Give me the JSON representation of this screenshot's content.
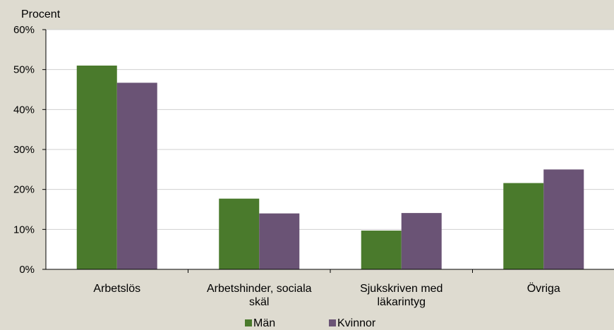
{
  "chart_data": {
    "type": "bar",
    "ylabel": "Procent",
    "ylim": [
      0,
      60
    ],
    "yticks": [
      "0%",
      "10%",
      "20%",
      "30%",
      "40%",
      "50%",
      "60%"
    ],
    "categories": [
      [
        "Arbetslös"
      ],
      [
        "Arbetshinder, sociala",
        "skäl"
      ],
      [
        "Sjukskriven med",
        "läkarintyg"
      ],
      [
        "Övriga"
      ]
    ],
    "series": [
      {
        "name": "Män",
        "color": "#4a7a2c",
        "values": [
          51,
          17.7,
          9.7,
          21.6
        ]
      },
      {
        "name": "Kvinnor",
        "color": "#6a5375",
        "values": [
          46.7,
          14,
          14.1,
          25
        ]
      }
    ],
    "grid": true,
    "legend": "bottom"
  }
}
